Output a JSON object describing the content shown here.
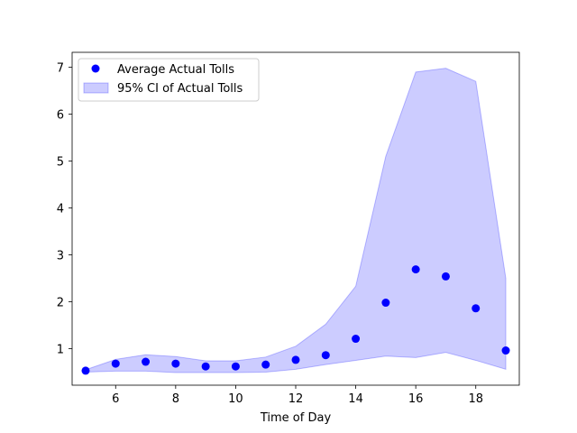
{
  "chart_data": {
    "type": "scatter",
    "xlabel": "Time of Day",
    "ylabel": "",
    "xlim": [
      4.55,
      19.45
    ],
    "ylim": [
      0.22,
      7.32
    ],
    "xticks": [
      6,
      8,
      10,
      12,
      14,
      16,
      18
    ],
    "yticks": [
      1,
      2,
      3,
      4,
      5,
      6,
      7
    ],
    "grid": false,
    "legend_position": "top-left",
    "series": [
      {
        "name": "Average Actual Tolls",
        "kind": "scatter",
        "color": "#0000ff",
        "x": [
          5,
          6,
          7,
          8,
          9,
          10,
          11,
          12,
          13,
          14,
          15,
          16,
          17,
          18,
          19
        ],
        "y": [
          0.53,
          0.68,
          0.72,
          0.68,
          0.62,
          0.62,
          0.66,
          0.76,
          0.86,
          1.21,
          1.98,
          2.69,
          2.54,
          1.86,
          0.96
        ]
      },
      {
        "name": "95% CI of Actual Tolls",
        "kind": "band",
        "color": "#0000ff",
        "fill_opacity": 0.2,
        "x": [
          5,
          6,
          7,
          8,
          9,
          10,
          11,
          12,
          13,
          14,
          15,
          16,
          17,
          18,
          19
        ],
        "lower": [
          0.5,
          0.52,
          0.52,
          0.49,
          0.49,
          0.49,
          0.5,
          0.56,
          0.66,
          0.75,
          0.84,
          0.81,
          0.92,
          0.75,
          0.56
        ],
        "upper": [
          0.55,
          0.77,
          0.87,
          0.83,
          0.74,
          0.74,
          0.82,
          1.05,
          1.52,
          2.33,
          5.1,
          6.9,
          6.98,
          6.7,
          2.5
        ]
      }
    ]
  }
}
